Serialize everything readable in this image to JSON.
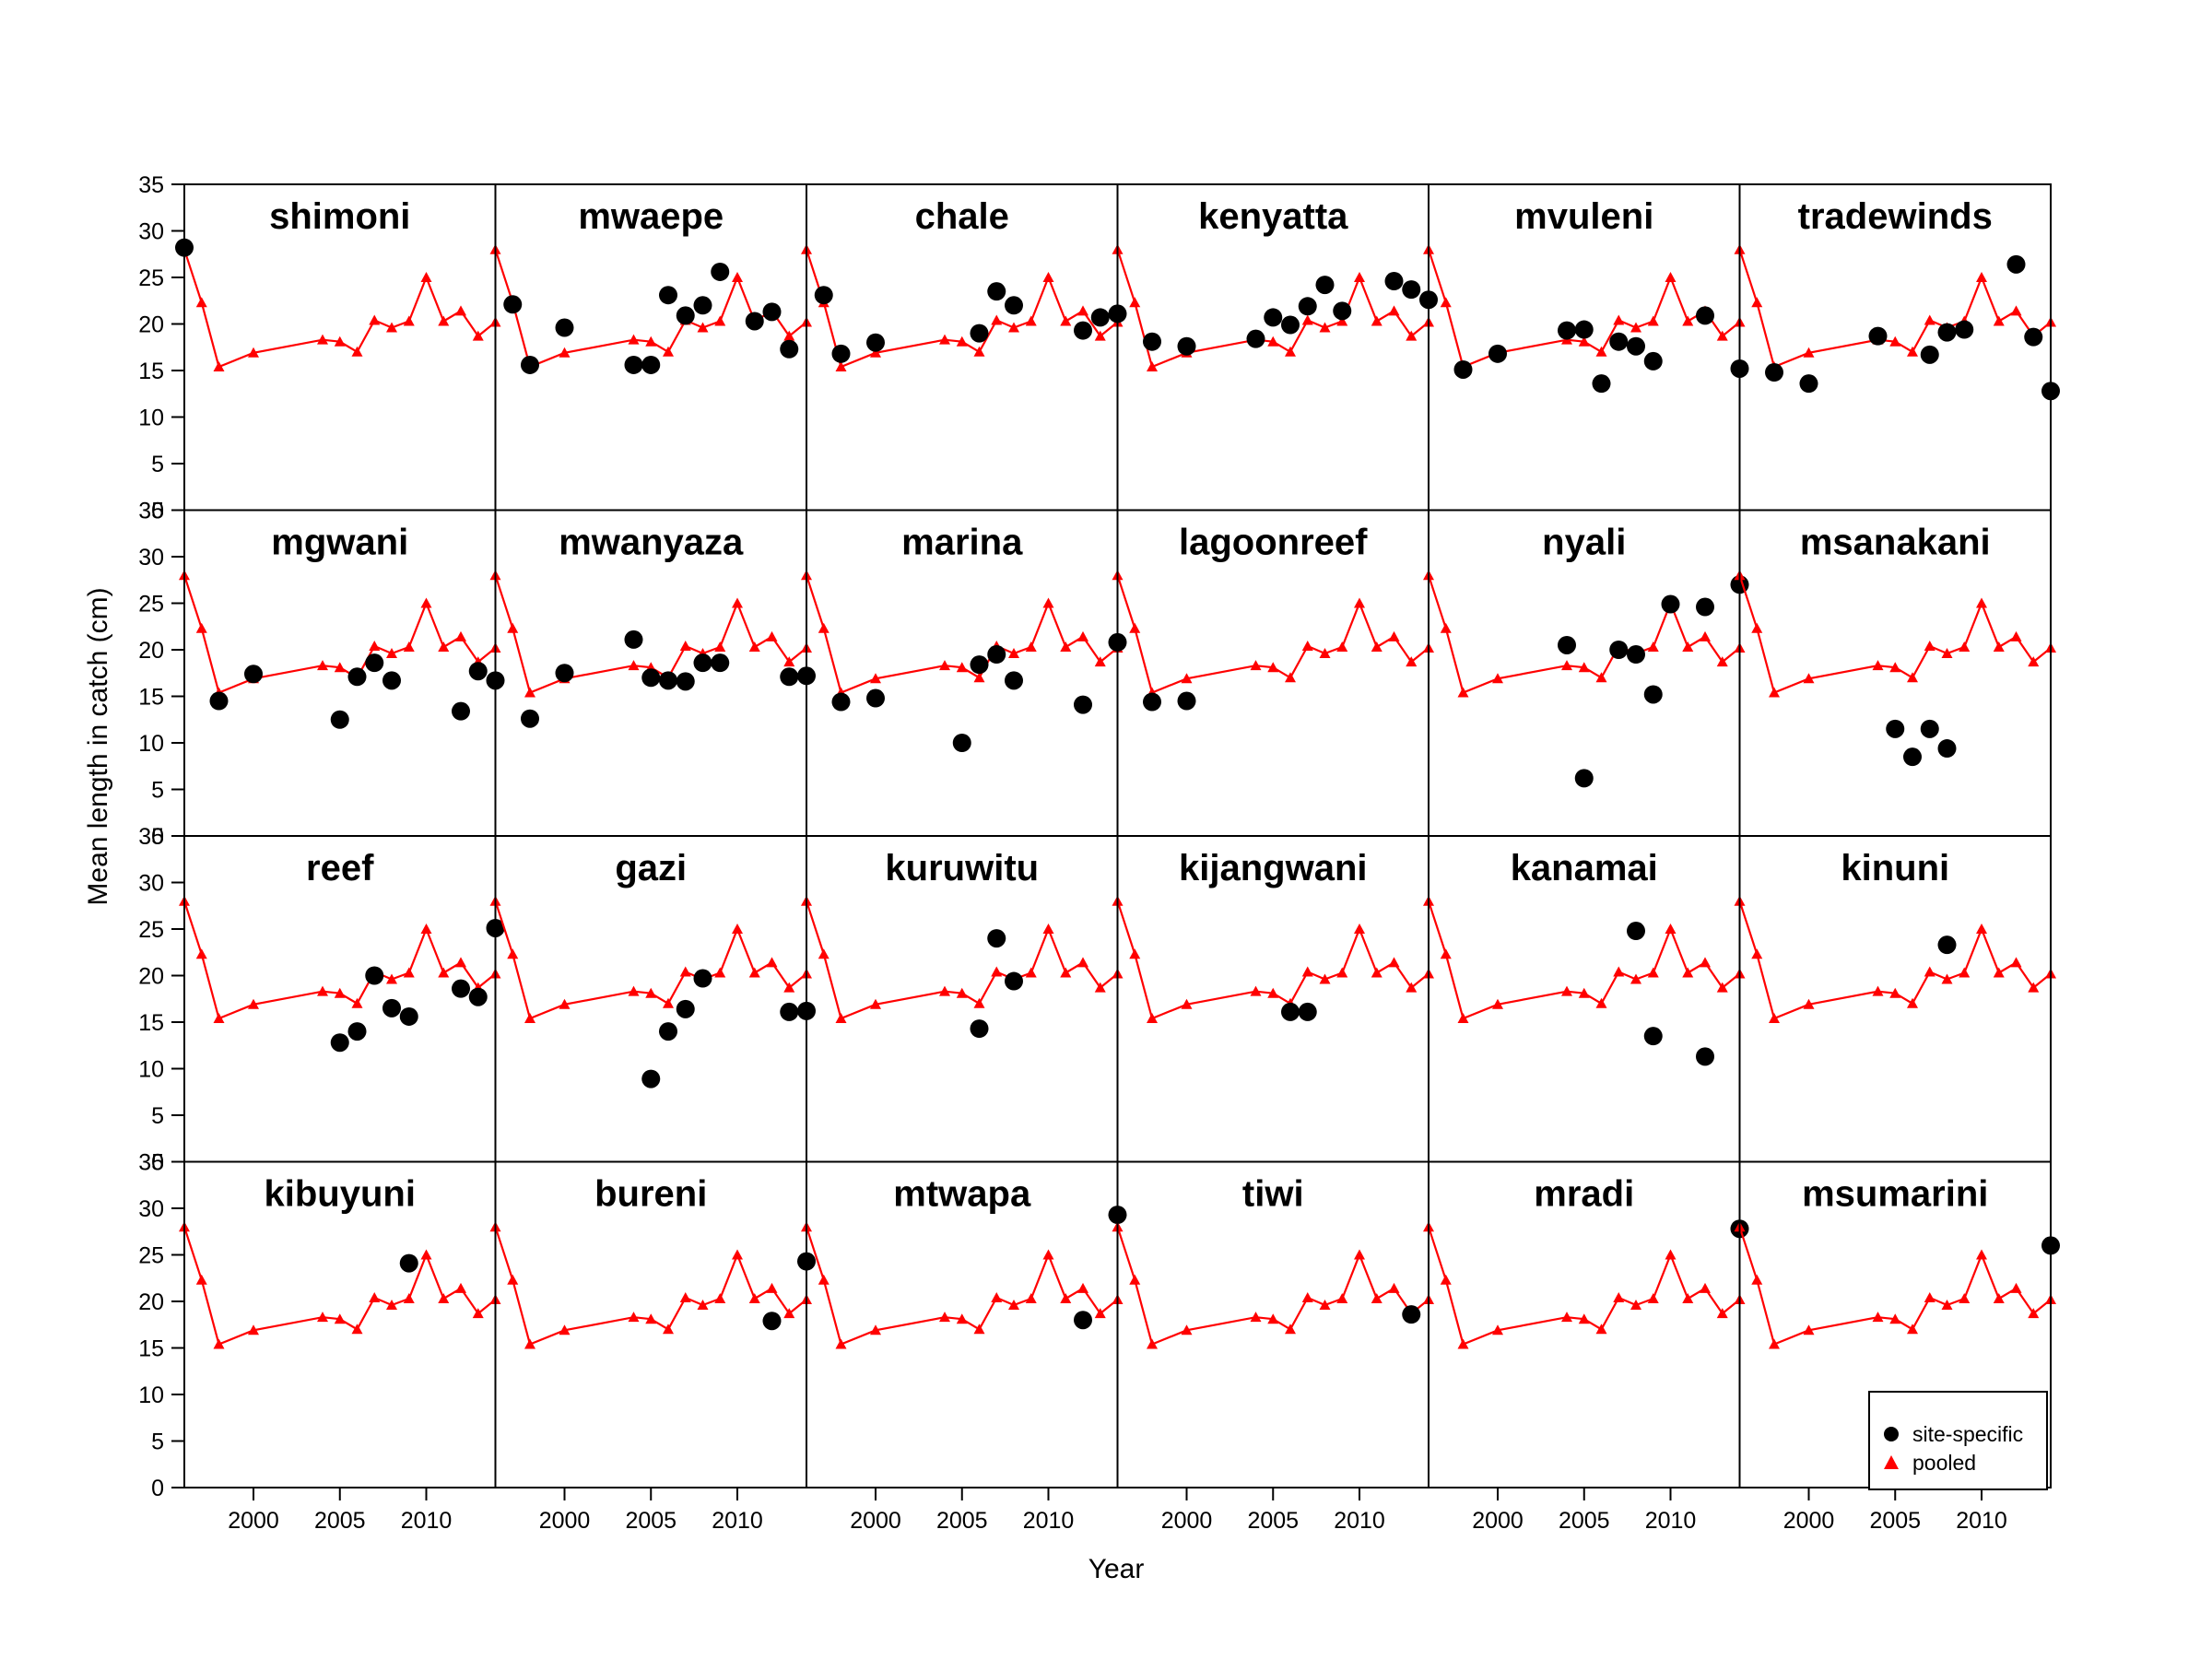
{
  "chart_data": {
    "type": "scatter",
    "layout": "small-multiples",
    "grid": "6x4",
    "xlabel": "Year",
    "ylabel": "Mean length in catch (cm)",
    "xlim": [
      1996,
      2014
    ],
    "ylim": [
      0,
      35
    ],
    "xticks": [
      2000,
      2005,
      2010
    ],
    "yticks": [
      0,
      5,
      10,
      15,
      20,
      25,
      30,
      35
    ],
    "grid_lines": false,
    "legend": {
      "position": "bottom-right",
      "entries": [
        {
          "label": "site-specific",
          "marker": "circle",
          "color": "#000000"
        },
        {
          "label": "pooled",
          "marker": "triangle",
          "color": "#ff0000"
        }
      ]
    },
    "pooled": {
      "x": [
        1996,
        1997,
        1998,
        2000,
        2004,
        2005,
        2006,
        2007,
        2008,
        2009,
        2010,
        2011,
        2012,
        2013,
        2014
      ],
      "y": [
        28.0,
        22.3,
        15.4,
        16.9,
        18.3,
        18.1,
        17.0,
        20.4,
        19.6,
        20.3,
        25.0,
        20.3,
        21.4,
        18.7,
        20.2
      ]
    },
    "panels": [
      {
        "name": "shimoni",
        "x": [
          1996
        ],
        "y": [
          28.2
        ]
      },
      {
        "name": "mwaepe",
        "x": [
          1997,
          1998,
          2000,
          2004,
          2005,
          2006,
          2007,
          2008,
          2009,
          2011,
          2012,
          2013
        ],
        "y": [
          22.1,
          15.6,
          19.6,
          15.6,
          15.6,
          23.1,
          20.9,
          22.0,
          25.6,
          20.3,
          21.3,
          17.3
        ]
      },
      {
        "name": "chale",
        "x": [
          1997,
          1998,
          2000,
          2006,
          2007,
          2008,
          2012,
          2013,
          2014
        ],
        "y": [
          23.1,
          16.8,
          18.0,
          19.0,
          23.5,
          22.0,
          19.3,
          20.7,
          21.1
        ]
      },
      {
        "name": "kenyatta",
        "x": [
          1998,
          2000,
          2004,
          2005,
          2006,
          2007,
          2008,
          2009,
          2012,
          2013,
          2014
        ],
        "y": [
          18.1,
          17.6,
          18.4,
          20.7,
          19.9,
          21.9,
          24.2,
          21.4,
          24.6,
          23.7,
          22.6
        ]
      },
      {
        "name": "mvuleni",
        "x": [
          1998,
          2000,
          2004,
          2005,
          2006,
          2007,
          2008,
          2009,
          2012
        ],
        "y": [
          15.1,
          16.8,
          19.3,
          19.4,
          13.6,
          18.1,
          17.6,
          16.0,
          20.9
        ]
      },
      {
        "name": "tradewinds",
        "x": [
          1996,
          1998,
          2000,
          2004,
          2007,
          2008,
          2009,
          2012,
          2013,
          2014
        ],
        "y": [
          15.2,
          14.8,
          13.6,
          18.7,
          16.7,
          19.1,
          19.4,
          26.4,
          18.6,
          12.8
        ]
      },
      {
        "name": "mgwani",
        "x": [
          1998,
          2000,
          2005,
          2006,
          2007,
          2008,
          2012,
          2013,
          2014
        ],
        "y": [
          14.5,
          17.4,
          12.5,
          17.1,
          18.6,
          16.7,
          13.4,
          17.7,
          16.7
        ]
      },
      {
        "name": "mwanyaza",
        "x": [
          1998,
          2000,
          2004,
          2005,
          2006,
          2007,
          2008,
          2009,
          2013,
          2014
        ],
        "y": [
          12.6,
          17.5,
          21.1,
          17.0,
          16.7,
          16.6,
          18.6,
          18.6,
          17.1,
          17.2
        ]
      },
      {
        "name": "marina",
        "x": [
          1998,
          2000,
          2005,
          2006,
          2007,
          2008,
          2012,
          2014
        ],
        "y": [
          14.4,
          14.8,
          10.0,
          18.4,
          19.5,
          16.7,
          14.1,
          20.8
        ]
      },
      {
        "name": "lagoonreef",
        "x": [
          1998,
          2000
        ],
        "y": [
          14.4,
          14.5
        ]
      },
      {
        "name": "nyali",
        "x": [
          2004,
          2005,
          2007,
          2008,
          2009,
          2010,
          2012,
          2014
        ],
        "y": [
          20.5,
          6.2,
          20.0,
          19.5,
          15.2,
          24.9,
          24.6,
          27.0
        ]
      },
      {
        "name": "msanakani",
        "x": [
          2005,
          2006,
          2007,
          2008
        ],
        "y": [
          11.5,
          8.5,
          11.5,
          9.4
        ]
      },
      {
        "name": "reef",
        "x": [
          2005,
          2006,
          2007,
          2008,
          2009,
          2012,
          2013,
          2014
        ],
        "y": [
          12.8,
          14.0,
          20.0,
          16.5,
          15.6,
          18.6,
          17.7,
          25.1
        ]
      },
      {
        "name": "gazi",
        "x": [
          2005,
          2006,
          2007,
          2008,
          2013,
          2014
        ],
        "y": [
          8.9,
          14.0,
          16.4,
          19.7,
          16.1,
          16.2
        ]
      },
      {
        "name": "kuruwitu",
        "x": [
          2006,
          2007,
          2008
        ],
        "y": [
          14.3,
          24.0,
          19.4
        ]
      },
      {
        "name": "kijangwani",
        "x": [
          2006,
          2007
        ],
        "y": [
          16.1,
          16.1
        ]
      },
      {
        "name": "kanamai",
        "x": [
          2008,
          2009,
          2012
        ],
        "y": [
          24.8,
          13.5,
          11.3
        ]
      },
      {
        "name": "kinuni",
        "x": [
          2008
        ],
        "y": [
          23.3
        ]
      },
      {
        "name": "kibuyuni",
        "x": [
          2009
        ],
        "y": [
          24.1
        ]
      },
      {
        "name": "bureni",
        "x": [
          2012,
          2014
        ],
        "y": [
          17.9,
          24.3
        ]
      },
      {
        "name": "mtwapa",
        "x": [
          2012,
          2014
        ],
        "y": [
          18.0,
          29.3
        ]
      },
      {
        "name": "tiwi",
        "x": [
          2013
        ],
        "y": [
          18.6
        ]
      },
      {
        "name": "mradi",
        "x": [
          2014
        ],
        "y": [
          27.8
        ]
      },
      {
        "name": "msumarini",
        "x": [
          2014
        ],
        "y": [
          26.0
        ]
      }
    ]
  }
}
